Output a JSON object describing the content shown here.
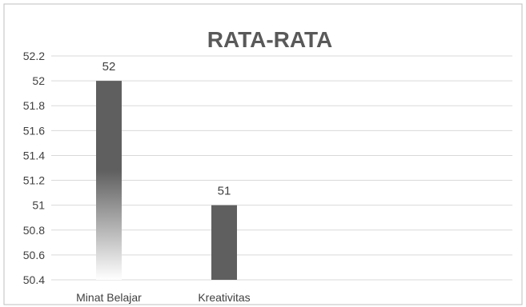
{
  "chart_data": {
    "type": "bar",
    "title": "RATA-RATA",
    "categories": [
      "Minat Belajar",
      "Kreativitas"
    ],
    "values": [
      52,
      51
    ],
    "data_labels": [
      "52",
      "51"
    ],
    "ylim": [
      50.4,
      52.2
    ],
    "yticks": [
      "50.4",
      "50.6",
      "50.8",
      "51",
      "51.2",
      "51.4",
      "51.6",
      "51.8",
      "52",
      "52.2"
    ],
    "grid": true,
    "legend": "none",
    "xlabel": "",
    "ylabel": "",
    "colors": {
      "bar": "#5f5f5f",
      "grid": "#d9d9d9",
      "text": "#404040",
      "title": "#595959",
      "border": "#bfbfbf"
    }
  }
}
